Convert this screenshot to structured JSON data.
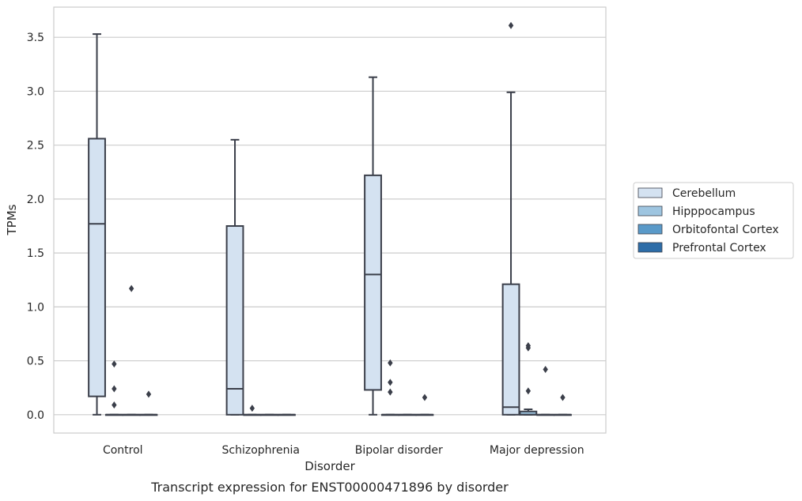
{
  "chart_data": {
    "type": "box",
    "caption": "Transcript expression for ENST00000471896 by disorder",
    "xlabel": "Disorder",
    "ylabel": "TPMs",
    "ylim": [
      -0.17,
      3.78
    ],
    "yticks": [
      "0.0",
      "0.5",
      "1.0",
      "1.5",
      "2.0",
      "2.5",
      "3.0",
      "3.5"
    ],
    "grid": true,
    "legend_position": "right",
    "categories": [
      "Control",
      "Schizophrenia",
      "Bipolar disorder",
      "Major depression"
    ],
    "series": [
      {
        "name": "Cerebellum",
        "color": "#d4e2f1",
        "boxes": [
          {
            "whislo": 0.0,
            "q1": 0.17,
            "med": 1.77,
            "q3": 2.56,
            "whishi": 3.53,
            "fliers": []
          },
          {
            "whislo": 0.0,
            "q1": 0.0,
            "med": 0.24,
            "q3": 1.75,
            "whishi": 2.55,
            "fliers": []
          },
          {
            "whislo": 0.0,
            "q1": 0.23,
            "med": 1.3,
            "q3": 2.22,
            "whishi": 3.13,
            "fliers": []
          },
          {
            "whislo": 0.0,
            "q1": 0.0,
            "med": 0.07,
            "q3": 1.21,
            "whishi": 2.99,
            "fliers": [
              3.61
            ]
          }
        ]
      },
      {
        "name": "Hipppocampus",
        "color": "#9ec5e0",
        "boxes": [
          {
            "whislo": 0.0,
            "q1": 0.0,
            "med": 0.0,
            "q3": 0.0,
            "whishi": 0.0,
            "fliers": [
              0.47,
              0.24,
              0.09
            ]
          },
          {
            "whislo": 0.0,
            "q1": 0.0,
            "med": 0.0,
            "q3": 0.0,
            "whishi": 0.0,
            "fliers": [
              0.06
            ]
          },
          {
            "whislo": 0.0,
            "q1": 0.0,
            "med": 0.0,
            "q3": 0.0,
            "whishi": 0.0,
            "fliers": [
              0.48,
              0.3,
              0.21
            ]
          },
          {
            "whislo": 0.0,
            "q1": 0.0,
            "med": 0.0,
            "q3": 0.03,
            "whishi": 0.05,
            "fliers": [
              0.64,
              0.62,
              0.22
            ]
          }
        ]
      },
      {
        "name": "Orbitofontal Cortex",
        "color": "#5a9ac9",
        "boxes": [
          {
            "whislo": 0.0,
            "q1": 0.0,
            "med": 0.0,
            "q3": 0.0,
            "whishi": 0.0,
            "fliers": [
              1.17
            ]
          },
          {
            "whislo": 0.0,
            "q1": 0.0,
            "med": 0.0,
            "q3": 0.0,
            "whishi": 0.0,
            "fliers": []
          },
          {
            "whislo": 0.0,
            "q1": 0.0,
            "med": 0.0,
            "q3": 0.0,
            "whishi": 0.0,
            "fliers": []
          },
          {
            "whislo": 0.0,
            "q1": 0.0,
            "med": 0.0,
            "q3": 0.0,
            "whishi": 0.0,
            "fliers": [
              0.42
            ]
          }
        ]
      },
      {
        "name": "Prefrontal Cortex",
        "color": "#2d6da8",
        "boxes": [
          {
            "whislo": 0.0,
            "q1": 0.0,
            "med": 0.0,
            "q3": 0.0,
            "whishi": 0.0,
            "fliers": [
              0.19
            ]
          },
          {
            "whislo": 0.0,
            "q1": 0.0,
            "med": 0.0,
            "q3": 0.0,
            "whishi": 0.0,
            "fliers": []
          },
          {
            "whislo": 0.0,
            "q1": 0.0,
            "med": 0.0,
            "q3": 0.0,
            "whishi": 0.0,
            "fliers": [
              0.16
            ]
          },
          {
            "whislo": 0.0,
            "q1": 0.0,
            "med": 0.0,
            "q3": 0.0,
            "whishi": 0.0,
            "fliers": [
              0.16
            ]
          }
        ]
      }
    ]
  }
}
